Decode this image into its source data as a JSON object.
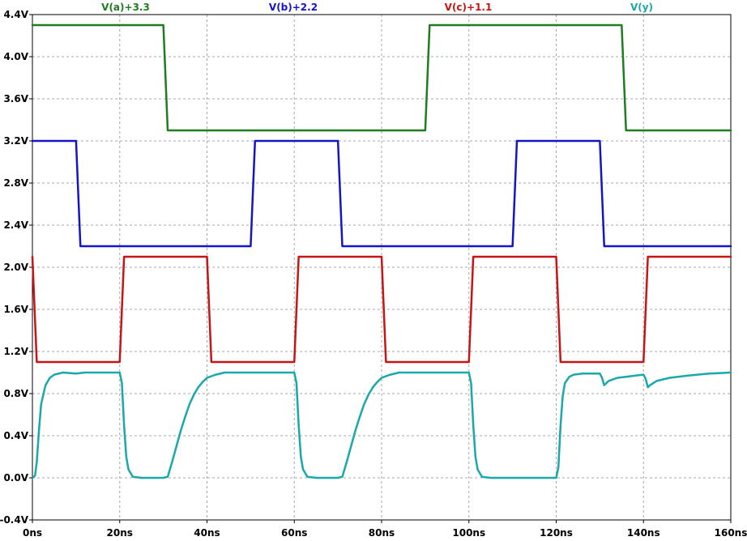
{
  "chart_data": {
    "type": "line",
    "title": "",
    "xlabel": "",
    "ylabel": "",
    "xlim": [
      0,
      160
    ],
    "ylim": [
      -0.4,
      4.4
    ],
    "x_unit": "ns",
    "y_unit": "V",
    "x_ticks": [
      0,
      20,
      40,
      60,
      80,
      100,
      120,
      140,
      160
    ],
    "x_tick_labels": [
      "0ns",
      "20ns",
      "40ns",
      "60ns",
      "80ns",
      "100ns",
      "120ns",
      "140ns",
      "160ns"
    ],
    "y_ticks": [
      -0.4,
      0.0,
      0.4,
      0.8,
      1.2,
      1.6,
      2.0,
      2.4,
      2.8,
      3.2,
      3.6,
      4.0,
      4.4
    ],
    "y_tick_labels": [
      "-0.4V",
      "0.0V",
      "0.4V",
      "0.8V",
      "1.2V",
      "1.6V",
      "2.0V",
      "2.4V",
      "2.8V",
      "3.2V",
      "3.6V",
      "4.0V",
      "4.4V"
    ],
    "grid": true,
    "legend_position": "top",
    "series": [
      {
        "name": "V(a)+3.3",
        "color": "#1e7d1e",
        "points": [
          [
            0,
            4.3
          ],
          [
            30,
            4.3
          ],
          [
            31,
            3.3
          ],
          [
            90,
            3.3
          ],
          [
            91,
            4.3
          ],
          [
            135,
            4.3
          ],
          [
            136,
            3.3
          ],
          [
            160,
            3.3
          ]
        ]
      },
      {
        "name": "V(b)+2.2",
        "color": "#1414c8",
        "points": [
          [
            0,
            3.2
          ],
          [
            10,
            3.2
          ],
          [
            11,
            2.2
          ],
          [
            50,
            2.2
          ],
          [
            51,
            3.2
          ],
          [
            70,
            3.2
          ],
          [
            71,
            2.2
          ],
          [
            110,
            2.2
          ],
          [
            111,
            3.2
          ],
          [
            130,
            3.2
          ],
          [
            131,
            2.2
          ],
          [
            160,
            2.2
          ]
        ]
      },
      {
        "name": "V(c)+1.1",
        "color": "#c81414",
        "points": [
          [
            0,
            2.1
          ],
          [
            1,
            1.1
          ],
          [
            20,
            1.1
          ],
          [
            21,
            2.1
          ],
          [
            40,
            2.1
          ],
          [
            41,
            1.1
          ],
          [
            60,
            1.1
          ],
          [
            61,
            2.1
          ],
          [
            80,
            2.1
          ],
          [
            81,
            1.1
          ],
          [
            100,
            1.1
          ],
          [
            101,
            2.1
          ],
          [
            120,
            2.1
          ],
          [
            121,
            1.1
          ],
          [
            140,
            1.1
          ],
          [
            141,
            2.1
          ],
          [
            160,
            2.1
          ]
        ]
      },
      {
        "name": "V(y)",
        "color": "#1aa8a8",
        "points": [
          [
            0,
            0.0
          ],
          [
            0.6,
            0.02
          ],
          [
            1,
            0.15
          ],
          [
            1.5,
            0.45
          ],
          [
            2,
            0.7
          ],
          [
            3,
            0.88
          ],
          [
            4,
            0.95
          ],
          [
            5,
            0.98
          ],
          [
            7,
            1.0
          ],
          [
            10,
            0.99
          ],
          [
            12,
            1.0
          ],
          [
            20,
            1.0
          ],
          [
            20.5,
            0.9
          ],
          [
            21,
            0.5
          ],
          [
            21.5,
            0.2
          ],
          [
            22,
            0.08
          ],
          [
            23,
            0.01
          ],
          [
            25,
            0.0
          ],
          [
            30,
            0.0
          ],
          [
            31,
            0.01
          ],
          [
            32,
            0.15
          ],
          [
            33,
            0.3
          ],
          [
            34,
            0.45
          ],
          [
            35,
            0.58
          ],
          [
            36,
            0.7
          ],
          [
            37,
            0.79
          ],
          [
            38,
            0.86
          ],
          [
            39,
            0.91
          ],
          [
            40,
            0.95
          ],
          [
            42,
            0.98
          ],
          [
            44,
            1.0
          ],
          [
            60,
            1.0
          ],
          [
            60.5,
            0.9
          ],
          [
            61,
            0.5
          ],
          [
            61.5,
            0.2
          ],
          [
            62,
            0.08
          ],
          [
            63,
            0.01
          ],
          [
            65,
            0.0
          ],
          [
            70,
            0.0
          ],
          [
            71,
            0.01
          ],
          [
            72,
            0.15
          ],
          [
            73,
            0.3
          ],
          [
            74,
            0.45
          ],
          [
            75,
            0.58
          ],
          [
            76,
            0.7
          ],
          [
            77,
            0.79
          ],
          [
            78,
            0.86
          ],
          [
            79,
            0.91
          ],
          [
            80,
            0.95
          ],
          [
            82,
            0.98
          ],
          [
            84,
            1.0
          ],
          [
            100,
            1.0
          ],
          [
            100.5,
            0.9
          ],
          [
            101,
            0.5
          ],
          [
            101.5,
            0.2
          ],
          [
            102,
            0.08
          ],
          [
            103,
            0.01
          ],
          [
            105,
            0.0
          ],
          [
            120,
            0.0
          ],
          [
            120.5,
            0.1
          ],
          [
            121,
            0.5
          ],
          [
            121.5,
            0.78
          ],
          [
            122,
            0.9
          ],
          [
            123,
            0.96
          ],
          [
            124,
            0.98
          ],
          [
            126,
            0.99
          ],
          [
            130,
            0.99
          ],
          [
            130.5,
            0.95
          ],
          [
            131,
            0.88
          ],
          [
            131.5,
            0.9
          ],
          [
            132,
            0.92
          ],
          [
            134,
            0.95
          ],
          [
            136,
            0.96
          ],
          [
            138,
            0.97
          ],
          [
            140,
            0.98
          ],
          [
            140.5,
            0.94
          ],
          [
            141,
            0.86
          ],
          [
            141.5,
            0.88
          ],
          [
            143,
            0.92
          ],
          [
            146,
            0.95
          ],
          [
            150,
            0.97
          ],
          [
            155,
            0.99
          ],
          [
            160,
            1.0
          ]
        ]
      }
    ]
  }
}
